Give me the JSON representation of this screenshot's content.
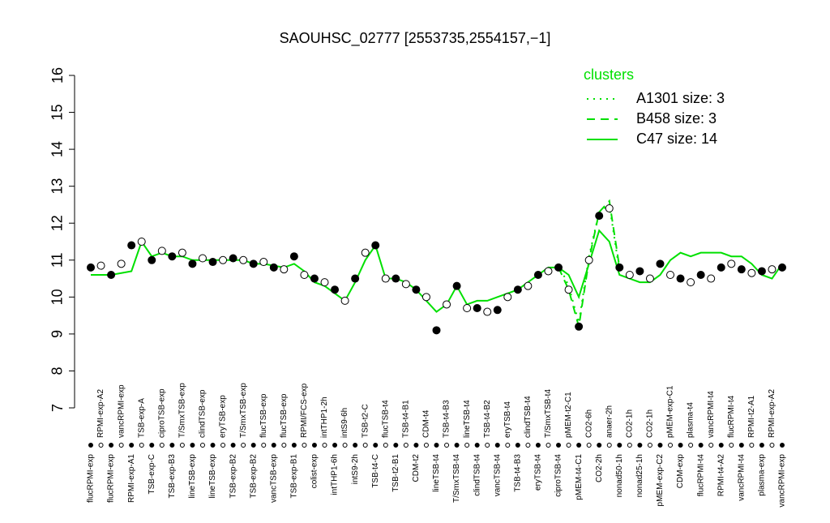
{
  "chart_data": {
    "type": "scatter",
    "title": "SAOUHSC_02777 [2553735,2554157,−1]",
    "categories": [
      "flucRPMI-exp",
      "RPMI-exp-A2",
      "flucRPMI-exp",
      "vancRPMI-exp",
      "RPMI-exp-A1",
      "TSB-exp-A",
      "TSB-exp-C",
      "ciproTSB-exp",
      "TSB-exp-B3",
      "T/SmxTSB-exp",
      "lineTSB-exp",
      "clindTSB-exp",
      "lineTSB-exp",
      "eryTSB-exp",
      "TSB-exp-B2",
      "T/SmxTSB-exp",
      "TSB-exp-B2",
      "flucTSB-exp",
      "vancTSB-exp",
      "flucTSB-exp",
      "TSB-exp-B1",
      "RPMI/FCS-exp",
      "colist-exp",
      "intTHP1-2h",
      "intTHP1-6h",
      "intS9-6h",
      "intS9-2h",
      "TSB-t2-C",
      "TSB-t4-C",
      "flucTSB-t4",
      "TSB-t2-B1",
      "TSB-t4-B1",
      "CDM-t2",
      "CDM-t4",
      "lineTSB-t4",
      "TSB-t4-B3",
      "T/SmxTSB-t4",
      "lineTSB-t4",
      "clindTSB-t4",
      "TSB-t4-B2",
      "vancTSB-t4",
      "eryTSB-t4",
      "TSB-t4-B3",
      "clindTSB-t4",
      "eryTSB-t4",
      "T/SmxTSB-t4",
      "ciproTSB-t4",
      "pMEM-t2-C1",
      "pMEM-t4-C1",
      "CO2-6h",
      "CO2-2h",
      "anaer-2h",
      "nonad50-1h",
      "CO2-1h",
      "nonad25-1h",
      "CO2-1h",
      "pMEM-exp-C2",
      "pMEM-exp-C1",
      "CDM-exp",
      "plasma-t4",
      "flucRPMI-t4",
      "vancRPMI-t4",
      "RPMI-t4-A2",
      "flucRPMI-t4",
      "vancRPMI-t4",
      "RPMI-t2-A1",
      "plasma-exp",
      "RPMI-exp-A2",
      "vancRPMI-exp"
    ],
    "values": [
      10.8,
      10.85,
      10.6,
      10.9,
      11.4,
      11.5,
      11.0,
      11.25,
      11.1,
      11.2,
      10.9,
      11.05,
      10.95,
      11.0,
      11.05,
      11.0,
      10.9,
      10.95,
      10.8,
      10.75,
      11.1,
      10.6,
      10.5,
      10.4,
      10.2,
      9.9,
      10.5,
      11.2,
      11.4,
      10.5,
      10.5,
      10.35,
      10.2,
      10.0,
      9.1,
      9.8,
      10.3,
      9.7,
      9.7,
      9.6,
      9.65,
      10.0,
      10.2,
      10.3,
      10.6,
      10.7,
      10.8,
      10.2,
      9.2,
      11.0,
      12.2,
      12.4,
      10.8,
      10.6,
      10.7,
      10.5,
      10.9,
      10.6,
      10.5,
      10.4,
      10.6,
      10.5,
      10.8,
      10.9,
      10.75,
      10.65,
      10.7,
      10.75,
      10.8
    ],
    "series": [
      {
        "name": "A1301 size: 3",
        "color": "#00e000",
        "dash": "dotted",
        "values": [
          null,
          null,
          null,
          null,
          null,
          null,
          null,
          null,
          null,
          null,
          null,
          null,
          null,
          null,
          null,
          null,
          null,
          null,
          null,
          null,
          null,
          null,
          null,
          null,
          null,
          null,
          null,
          null,
          null,
          null,
          null,
          null,
          null,
          null,
          null,
          null,
          null,
          null,
          null,
          null,
          null,
          null,
          null,
          null,
          null,
          null,
          10.9,
          10.3,
          9.3,
          11.1,
          12.3,
          12.5,
          10.7,
          null,
          null,
          null,
          null,
          null,
          null,
          null,
          null,
          null,
          null,
          null,
          null,
          null,
          null,
          null,
          null
        ]
      },
      {
        "name": "B458 size: 3",
        "color": "#00e000",
        "dash": "dashed",
        "values": [
          null,
          null,
          null,
          null,
          null,
          null,
          null,
          null,
          null,
          null,
          null,
          null,
          null,
          null,
          null,
          null,
          null,
          null,
          null,
          null,
          null,
          null,
          null,
          null,
          null,
          null,
          null,
          null,
          null,
          null,
          null,
          null,
          null,
          null,
          null,
          null,
          null,
          null,
          null,
          null,
          null,
          null,
          null,
          null,
          null,
          null,
          10.8,
          10.2,
          9.2,
          11.0,
          12.3,
          12.6,
          10.8,
          null,
          null,
          null,
          null,
          null,
          null,
          null,
          null,
          null,
          null,
          null,
          null,
          null,
          null,
          null,
          null
        ]
      },
      {
        "name": "C47 size: 14",
        "color": "#00e000",
        "dash": "solid",
        "values": [
          10.6,
          10.6,
          10.6,
          10.65,
          10.7,
          11.5,
          11.1,
          11.2,
          11.1,
          11.1,
          11.0,
          11.0,
          11.0,
          11.0,
          11.0,
          11.0,
          10.9,
          10.9,
          10.85,
          10.8,
          10.9,
          10.7,
          10.4,
          10.3,
          10.1,
          9.9,
          10.4,
          11.0,
          11.4,
          10.5,
          10.5,
          10.4,
          10.2,
          9.9,
          9.6,
          9.8,
          10.3,
          9.8,
          9.9,
          9.9,
          10.0,
          10.1,
          10.2,
          10.4,
          10.6,
          10.8,
          10.8,
          10.6,
          10.0,
          10.9,
          11.8,
          11.5,
          10.6,
          10.5,
          10.4,
          10.4,
          10.6,
          11.0,
          11.2,
          11.1,
          11.2,
          11.2,
          11.2,
          11.1,
          11.1,
          10.9,
          10.6,
          10.5,
          10.9
        ]
      }
    ],
    "legend_title": "clusters",
    "ylim": [
      7,
      16
    ],
    "yticks": [
      7,
      8,
      9,
      10,
      11,
      12,
      13,
      14,
      15,
      16
    ]
  }
}
